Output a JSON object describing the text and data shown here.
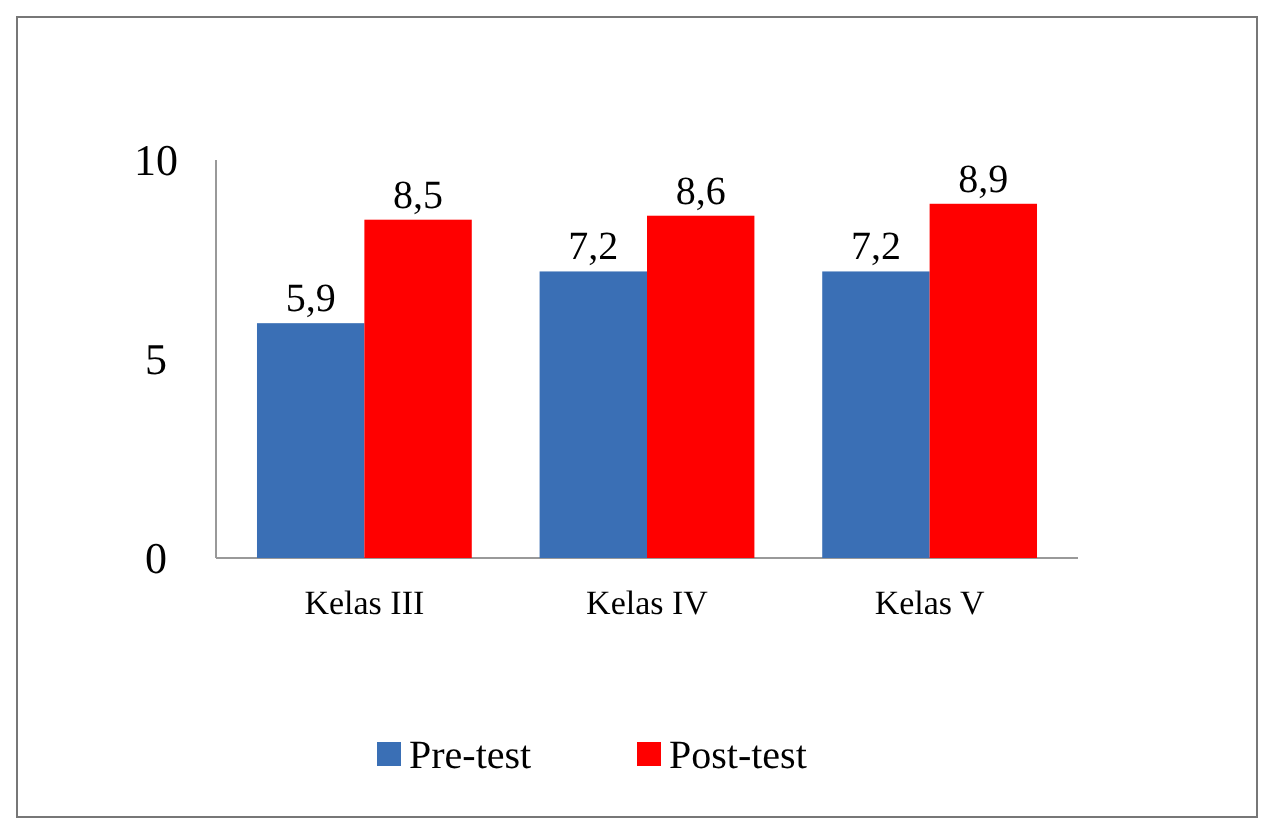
{
  "chart_data": {
    "type": "bar",
    "categories": [
      "Kelas III",
      "Kelas IV",
      "Kelas V"
    ],
    "series": [
      {
        "name": "Pre-test",
        "color": "#3a6fb5",
        "values": [
          5.9,
          7.2,
          7.2
        ],
        "value_labels": [
          "5,9",
          "7,2",
          "7,2"
        ]
      },
      {
        "name": "Post-test",
        "color": "#ff0000",
        "values": [
          8.5,
          8.6,
          8.9
        ],
        "value_labels": [
          "8,5",
          "8,6",
          "8,9"
        ]
      }
    ],
    "ylim": [
      0,
      10
    ],
    "yticks": [
      0,
      5,
      10
    ],
    "legend": "bottom"
  }
}
